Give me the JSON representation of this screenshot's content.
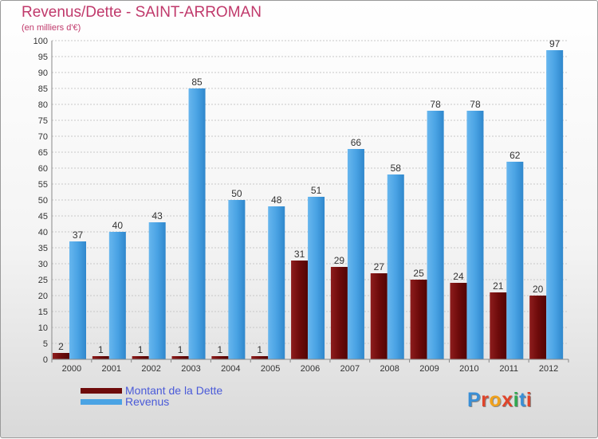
{
  "title": "Revenus/Dette - SAINT-ARROMAN",
  "subtitle": "(en milliers d'€)",
  "brand": "Proxiti",
  "colors": {
    "dette": "#7a0f0f",
    "revenus": "#4aa3e4",
    "title": "#c0396b",
    "legend_text": "#4a5ad8"
  },
  "chart_data": {
    "type": "bar",
    "title": "Revenus/Dette - SAINT-ARROMAN",
    "ylabel": "(en milliers d'€)",
    "xlabel": "",
    "categories": [
      "2000",
      "2001",
      "2002",
      "2003",
      "2004",
      "2005",
      "2006",
      "2007",
      "2008",
      "2009",
      "2010",
      "2011",
      "2012"
    ],
    "series": [
      {
        "name": "Montant de la Dette",
        "values": [
          2,
          1,
          1,
          1,
          1,
          1,
          31,
          29,
          27,
          25,
          24,
          21,
          20
        ]
      },
      {
        "name": "Revenus",
        "values": [
          37,
          40,
          43,
          85,
          50,
          48,
          51,
          66,
          58,
          78,
          78,
          62,
          97
        ]
      }
    ],
    "ylim": [
      0,
      100
    ],
    "ytick_step": 5,
    "grid": true,
    "legend": "bottom-left"
  }
}
